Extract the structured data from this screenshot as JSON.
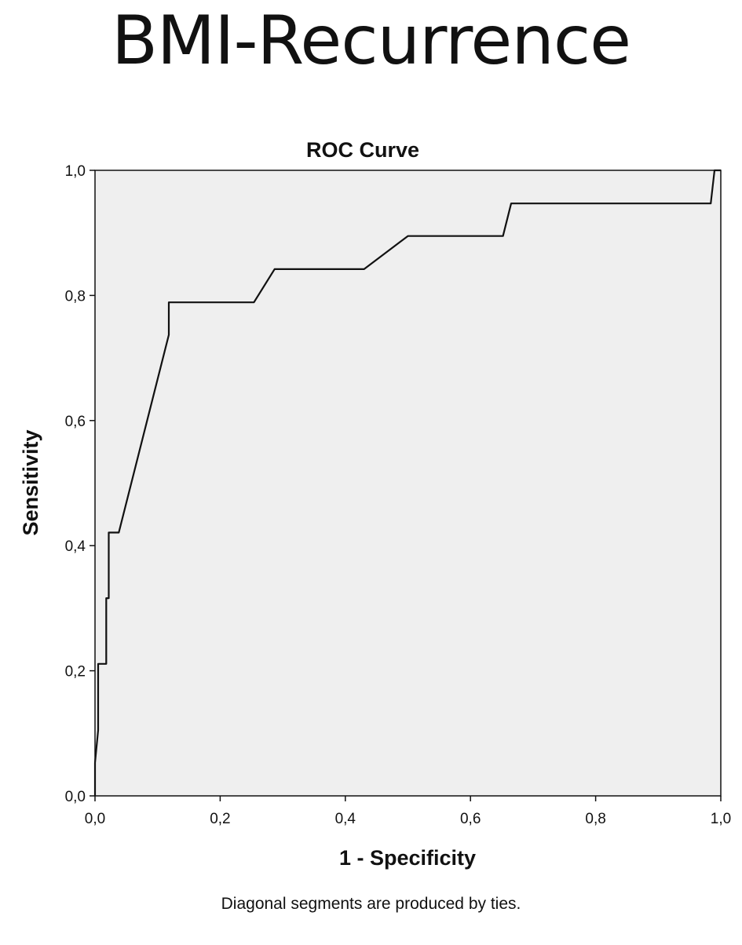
{
  "page": {
    "heading": "BMI-Recurrence",
    "footnote": "Diagonal segments are produced by ties."
  },
  "chart_data": {
    "type": "line",
    "title": "ROC Curve",
    "xlabel": "1 - Specificity",
    "ylabel": "Sensitivity",
    "xlim": [
      0,
      1
    ],
    "ylim": [
      0,
      1
    ],
    "x_ticks": [
      0,
      0.2,
      0.4,
      0.6,
      0.8,
      1
    ],
    "y_ticks": [
      0,
      0.2,
      0.4,
      0.6,
      0.8,
      1
    ],
    "x_tick_labels": [
      "0,0",
      "0,2",
      "0,4",
      "0,6",
      "0,8",
      "1,0"
    ],
    "y_tick_labels": [
      "0,0",
      "0,2",
      "0,4",
      "0,6",
      "0,8",
      "1,0"
    ],
    "grid": false,
    "background": "#efefef",
    "line_color": "#111111",
    "series": [
      {
        "points": [
          [
            0,
            0
          ],
          [
            0,
            0.053
          ],
          [
            0.005,
            0.105
          ],
          [
            0.005,
            0.211
          ],
          [
            0.018,
            0.211
          ],
          [
            0.018,
            0.316
          ],
          [
            0.022,
            0.316
          ],
          [
            0.022,
            0.421
          ],
          [
            0.038,
            0.421
          ],
          [
            0.118,
            0.737
          ],
          [
            0.118,
            0.789
          ],
          [
            0.254,
            0.789
          ],
          [
            0.287,
            0.842
          ],
          [
            0.43,
            0.842
          ],
          [
            0.5,
            0.895
          ],
          [
            0.652,
            0.895
          ],
          [
            0.665,
            0.947
          ],
          [
            0.984,
            0.947
          ],
          [
            0.99,
            1
          ],
          [
            1,
            1
          ]
        ]
      }
    ]
  }
}
